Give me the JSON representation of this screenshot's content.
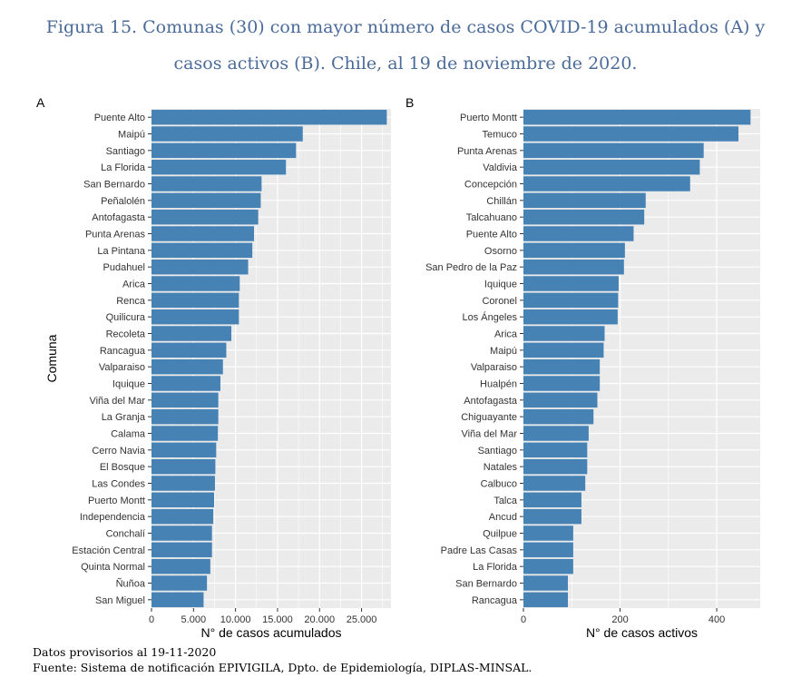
{
  "title": {
    "line1": "Figura 15. Comunas (30) con mayor número de casos COVID-19 acumulados (A) y",
    "line2": "casos activos (B). Chile, al 19 de noviembre de 2020."
  },
  "footnotes": {
    "note": "Datos provisorios al 19-11-2020",
    "source": "Fuente: Sistema de notificación EPIVIGILA, Dpto. de Epidemiología, DIPLAS-MINSAL."
  },
  "colors": {
    "bar": "#4682B4",
    "panel_bg": "#EBEBEB",
    "grid": "#FFFFFF"
  },
  "chart_data": [
    {
      "type": "bar",
      "orientation": "horizontal",
      "panel_label": "A",
      "ylabel": "Comuna",
      "xlabel": "N° de casos acumulados",
      "xlim": [
        0,
        28500
      ],
      "xticks": [
        0,
        5000,
        10000,
        15000,
        20000,
        25000
      ],
      "xtick_labels": [
        "0",
        "5.000",
        "10.000",
        "15.000",
        "20.000",
        "25.000"
      ],
      "grid": true,
      "categories": [
        "Puente Alto",
        "Maipú",
        "Santiago",
        "La Florida",
        "San Bernardo",
        "Peñalolén",
        "Antofagasta",
        "Punta Arenas",
        "La Pintana",
        "Pudahuel",
        "Arica",
        "Renca",
        "Quilicura",
        "Recoleta",
        "Rancagua",
        "Valparaiso",
        "Iquique",
        "Viña del Mar",
        "La Granja",
        "Calama",
        "Cerro Navia",
        "El Bosque",
        "Las Condes",
        "Puerto Montt",
        "Independencia",
        "Conchalí",
        "Estación Central",
        "Quinta Normal",
        "Ñuñoa",
        "San Miguel"
      ],
      "values": [
        28000,
        18000,
        17200,
        16000,
        13100,
        13000,
        12700,
        12200,
        12000,
        11500,
        10500,
        10400,
        10400,
        9500,
        8900,
        8500,
        8200,
        7950,
        7950,
        7900,
        7700,
        7600,
        7550,
        7450,
        7350,
        7200,
        7200,
        7000,
        6600,
        6200
      ]
    },
    {
      "type": "bar",
      "orientation": "horizontal",
      "panel_label": "B",
      "ylabel": "",
      "xlabel": "N° de casos activos",
      "xlim": [
        0,
        490
      ],
      "xticks": [
        0,
        200,
        400
      ],
      "xtick_labels": [
        "0",
        "200",
        "400"
      ],
      "grid": true,
      "categories": [
        "Puerto Montt",
        "Temuco",
        "Punta Arenas",
        "Valdivia",
        "Concepción",
        "Chillán",
        "Talcahuano",
        "Puente Alto",
        "Osorno",
        "San Pedro de la Paz",
        "Iquique",
        "Coronel",
        "Los Ángeles",
        "Arica",
        "Maipú",
        "Valparaiso",
        "Hualpén",
        "Antofagasta",
        "Chiguayante",
        "Viña del Mar",
        "Santiago",
        "Natales",
        "Calbuco",
        "Talca",
        "Ancud",
        "Quilpue",
        "Padre Las Casas",
        "La Florida",
        "San Bernardo",
        "Rancagua"
      ],
      "values": [
        470,
        445,
        373,
        365,
        345,
        253,
        250,
        228,
        210,
        208,
        197,
        196,
        195,
        168,
        166,
        158,
        158,
        153,
        145,
        135,
        132,
        132,
        128,
        120,
        120,
        103,
        103,
        103,
        92,
        92
      ]
    }
  ]
}
